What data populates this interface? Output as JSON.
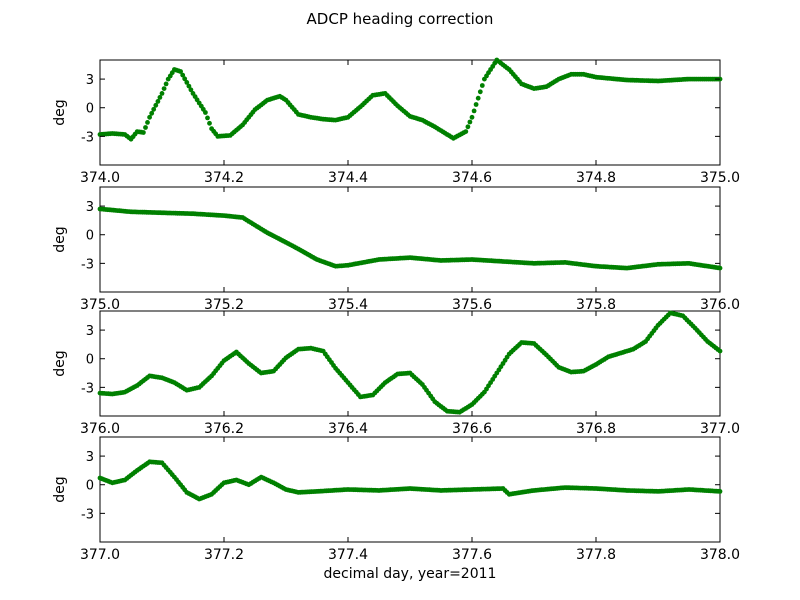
{
  "title": "ADCP heading correction",
  "xlabel": "decimal day, year=2011",
  "point_color": "#008000",
  "chart_data": [
    {
      "type": "scatter",
      "ylabel": "deg",
      "xlim": [
        374.0,
        375.0
      ],
      "ylim": [
        -6,
        5
      ],
      "xticks": [
        "374.0",
        "374.2",
        "374.4",
        "374.6",
        "374.8",
        "375.0"
      ],
      "yticks": [
        "3",
        "0",
        "-3"
      ],
      "x": [
        374.0,
        374.02,
        374.04,
        374.05,
        374.06,
        374.07,
        374.08,
        374.1,
        374.11,
        374.12,
        374.13,
        374.15,
        374.17,
        374.18,
        374.19,
        374.21,
        374.23,
        374.25,
        374.27,
        374.29,
        374.3,
        374.32,
        374.34,
        374.36,
        374.38,
        374.4,
        374.42,
        374.44,
        374.46,
        374.48,
        374.5,
        374.52,
        374.54,
        374.56,
        374.57,
        374.59,
        374.6,
        374.62,
        374.64,
        374.66,
        374.68,
        374.7,
        374.72,
        374.74,
        374.76,
        374.78,
        374.8,
        374.85,
        374.9,
        374.95,
        375.0
      ],
      "y": [
        -2.8,
        -2.7,
        -2.8,
        -3.3,
        -2.5,
        -2.6,
        -1.0,
        1.5,
        3.0,
        4.0,
        3.8,
        1.5,
        -0.5,
        -2.2,
        -3.0,
        -2.9,
        -1.8,
        -0.2,
        0.8,
        1.2,
        0.8,
        -0.7,
        -1.0,
        -1.2,
        -1.3,
        -1.0,
        0.1,
        1.3,
        1.5,
        0.2,
        -0.9,
        -1.3,
        -2.0,
        -2.8,
        -3.2,
        -2.5,
        -1.0,
        3.0,
        5.0,
        4.0,
        2.5,
        2.0,
        2.2,
        3.0,
        3.5,
        3.5,
        3.2,
        2.9,
        2.8,
        3.0,
        3.0
      ]
    },
    {
      "type": "scatter",
      "ylabel": "deg",
      "xlim": [
        375.0,
        376.0
      ],
      "ylim": [
        -6,
        5
      ],
      "xticks": [
        "375.0",
        "375.2",
        "375.4",
        "375.6",
        "375.8",
        "376.0"
      ],
      "yticks": [
        "3",
        "0",
        "-3"
      ],
      "x": [
        375.0,
        375.05,
        375.1,
        375.15,
        375.2,
        375.23,
        375.25,
        375.27,
        375.3,
        375.32,
        375.35,
        375.38,
        375.4,
        375.45,
        375.5,
        375.55,
        375.6,
        375.65,
        375.7,
        375.75,
        375.8,
        375.85,
        375.9,
        375.95,
        376.0
      ],
      "y": [
        2.7,
        2.4,
        2.3,
        2.2,
        2.0,
        1.8,
        1.0,
        0.2,
        -0.8,
        -1.5,
        -2.6,
        -3.3,
        -3.2,
        -2.6,
        -2.4,
        -2.7,
        -2.6,
        -2.8,
        -3.0,
        -2.9,
        -3.3,
        -3.5,
        -3.1,
        -3.0,
        -3.5
      ]
    },
    {
      "type": "scatter",
      "ylabel": "deg",
      "xlim": [
        376.0,
        377.0
      ],
      "ylim": [
        -6,
        5
      ],
      "xticks": [
        "376.0",
        "376.2",
        "376.4",
        "376.6",
        "376.8",
        "377.0"
      ],
      "yticks": [
        "3",
        "0",
        "-3"
      ],
      "x": [
        376.0,
        376.02,
        376.04,
        376.06,
        376.08,
        376.1,
        376.12,
        376.14,
        376.16,
        376.18,
        376.2,
        376.22,
        376.24,
        376.26,
        376.28,
        376.3,
        376.32,
        376.34,
        376.36,
        376.38,
        376.4,
        376.42,
        376.44,
        376.46,
        376.48,
        376.5,
        376.52,
        376.54,
        376.56,
        376.58,
        376.6,
        376.62,
        376.64,
        376.66,
        376.68,
        376.7,
        376.72,
        376.74,
        376.76,
        376.78,
        376.8,
        376.82,
        376.84,
        376.86,
        376.88,
        376.9,
        376.92,
        376.94,
        376.96,
        376.98,
        377.0
      ],
      "y": [
        -3.6,
        -3.7,
        -3.5,
        -2.8,
        -1.8,
        -2.0,
        -2.5,
        -3.3,
        -3.0,
        -1.8,
        -0.2,
        0.7,
        -0.5,
        -1.5,
        -1.3,
        0.1,
        1.0,
        1.1,
        0.8,
        -1.0,
        -2.5,
        -4.0,
        -3.8,
        -2.5,
        -1.6,
        -1.5,
        -2.7,
        -4.5,
        -5.5,
        -5.6,
        -4.8,
        -3.5,
        -1.5,
        0.5,
        1.7,
        1.6,
        0.4,
        -0.9,
        -1.4,
        -1.3,
        -0.6,
        0.2,
        0.6,
        1.0,
        1.8,
        3.5,
        4.8,
        4.5,
        3.2,
        1.8,
        0.8
      ]
    },
    {
      "type": "scatter",
      "ylabel": "deg",
      "xlim": [
        377.0,
        378.0
      ],
      "ylim": [
        -6,
        5
      ],
      "xticks": [
        "377.0",
        "377.2",
        "377.4",
        "377.6",
        "377.8",
        "378.0"
      ],
      "yticks": [
        "3",
        "0",
        "-3"
      ],
      "x": [
        377.0,
        377.02,
        377.04,
        377.06,
        377.08,
        377.1,
        377.12,
        377.14,
        377.16,
        377.18,
        377.2,
        377.22,
        377.24,
        377.26,
        377.28,
        377.3,
        377.32,
        377.35,
        377.4,
        377.45,
        377.5,
        377.55,
        377.6,
        377.65,
        377.66,
        377.7,
        377.75,
        377.8,
        377.85,
        377.9,
        377.95,
        378.0
      ],
      "y": [
        0.7,
        0.2,
        0.5,
        1.5,
        2.4,
        2.3,
        0.8,
        -0.8,
        -1.5,
        -1.0,
        0.2,
        0.5,
        0.0,
        0.8,
        0.2,
        -0.5,
        -0.8,
        -0.7,
        -0.5,
        -0.6,
        -0.4,
        -0.6,
        -0.5,
        -0.4,
        -1.0,
        -0.6,
        -0.3,
        -0.4,
        -0.6,
        -0.7,
        -0.5,
        -0.7
      ]
    }
  ]
}
